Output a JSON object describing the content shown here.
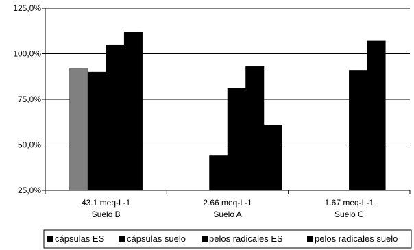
{
  "chart_data": {
    "type": "bar",
    "title": "",
    "xlabel": "",
    "ylabel": "",
    "ylim": [
      0.25,
      1.25
    ],
    "yticks": [
      0.25,
      0.5,
      0.75,
      1.0,
      1.25
    ],
    "ytick_labels": [
      "25,0%",
      "50,0%",
      "75,0%",
      "100,0%",
      "125,0%"
    ],
    "grid": true,
    "legend_position": "bottom",
    "categories": [
      {
        "line1": "43.1 meq-L-1",
        "line2": "Suelo B"
      },
      {
        "line1": "2.66 meq-L-1",
        "line2": "Suelo A"
      },
      {
        "line1": "1.67 meq-L-1",
        "line2": "Suelo C"
      }
    ],
    "series": [
      {
        "name": "cápsulas ES",
        "color": "#000000",
        "values": [
          0.92,
          null,
          null
        ]
      },
      {
        "name": "cápsulas suelo",
        "color": "#000000",
        "values": [
          0.9,
          0.44,
          null
        ]
      },
      {
        "name": "pelos radicales ES",
        "color": "#000000",
        "values": [
          1.05,
          0.81,
          0.91
        ]
      },
      {
        "name": "pelos radicales suelo",
        "color": "#000000",
        "values": [
          1.12,
          0.93,
          1.07
        ]
      }
    ],
    "highlight": {
      "category_index": 0,
      "series_index": 0,
      "color": "#808080"
    },
    "extra_bars": [
      {
        "category_index": 1,
        "value": 0.61,
        "color": "#000000"
      }
    ]
  }
}
